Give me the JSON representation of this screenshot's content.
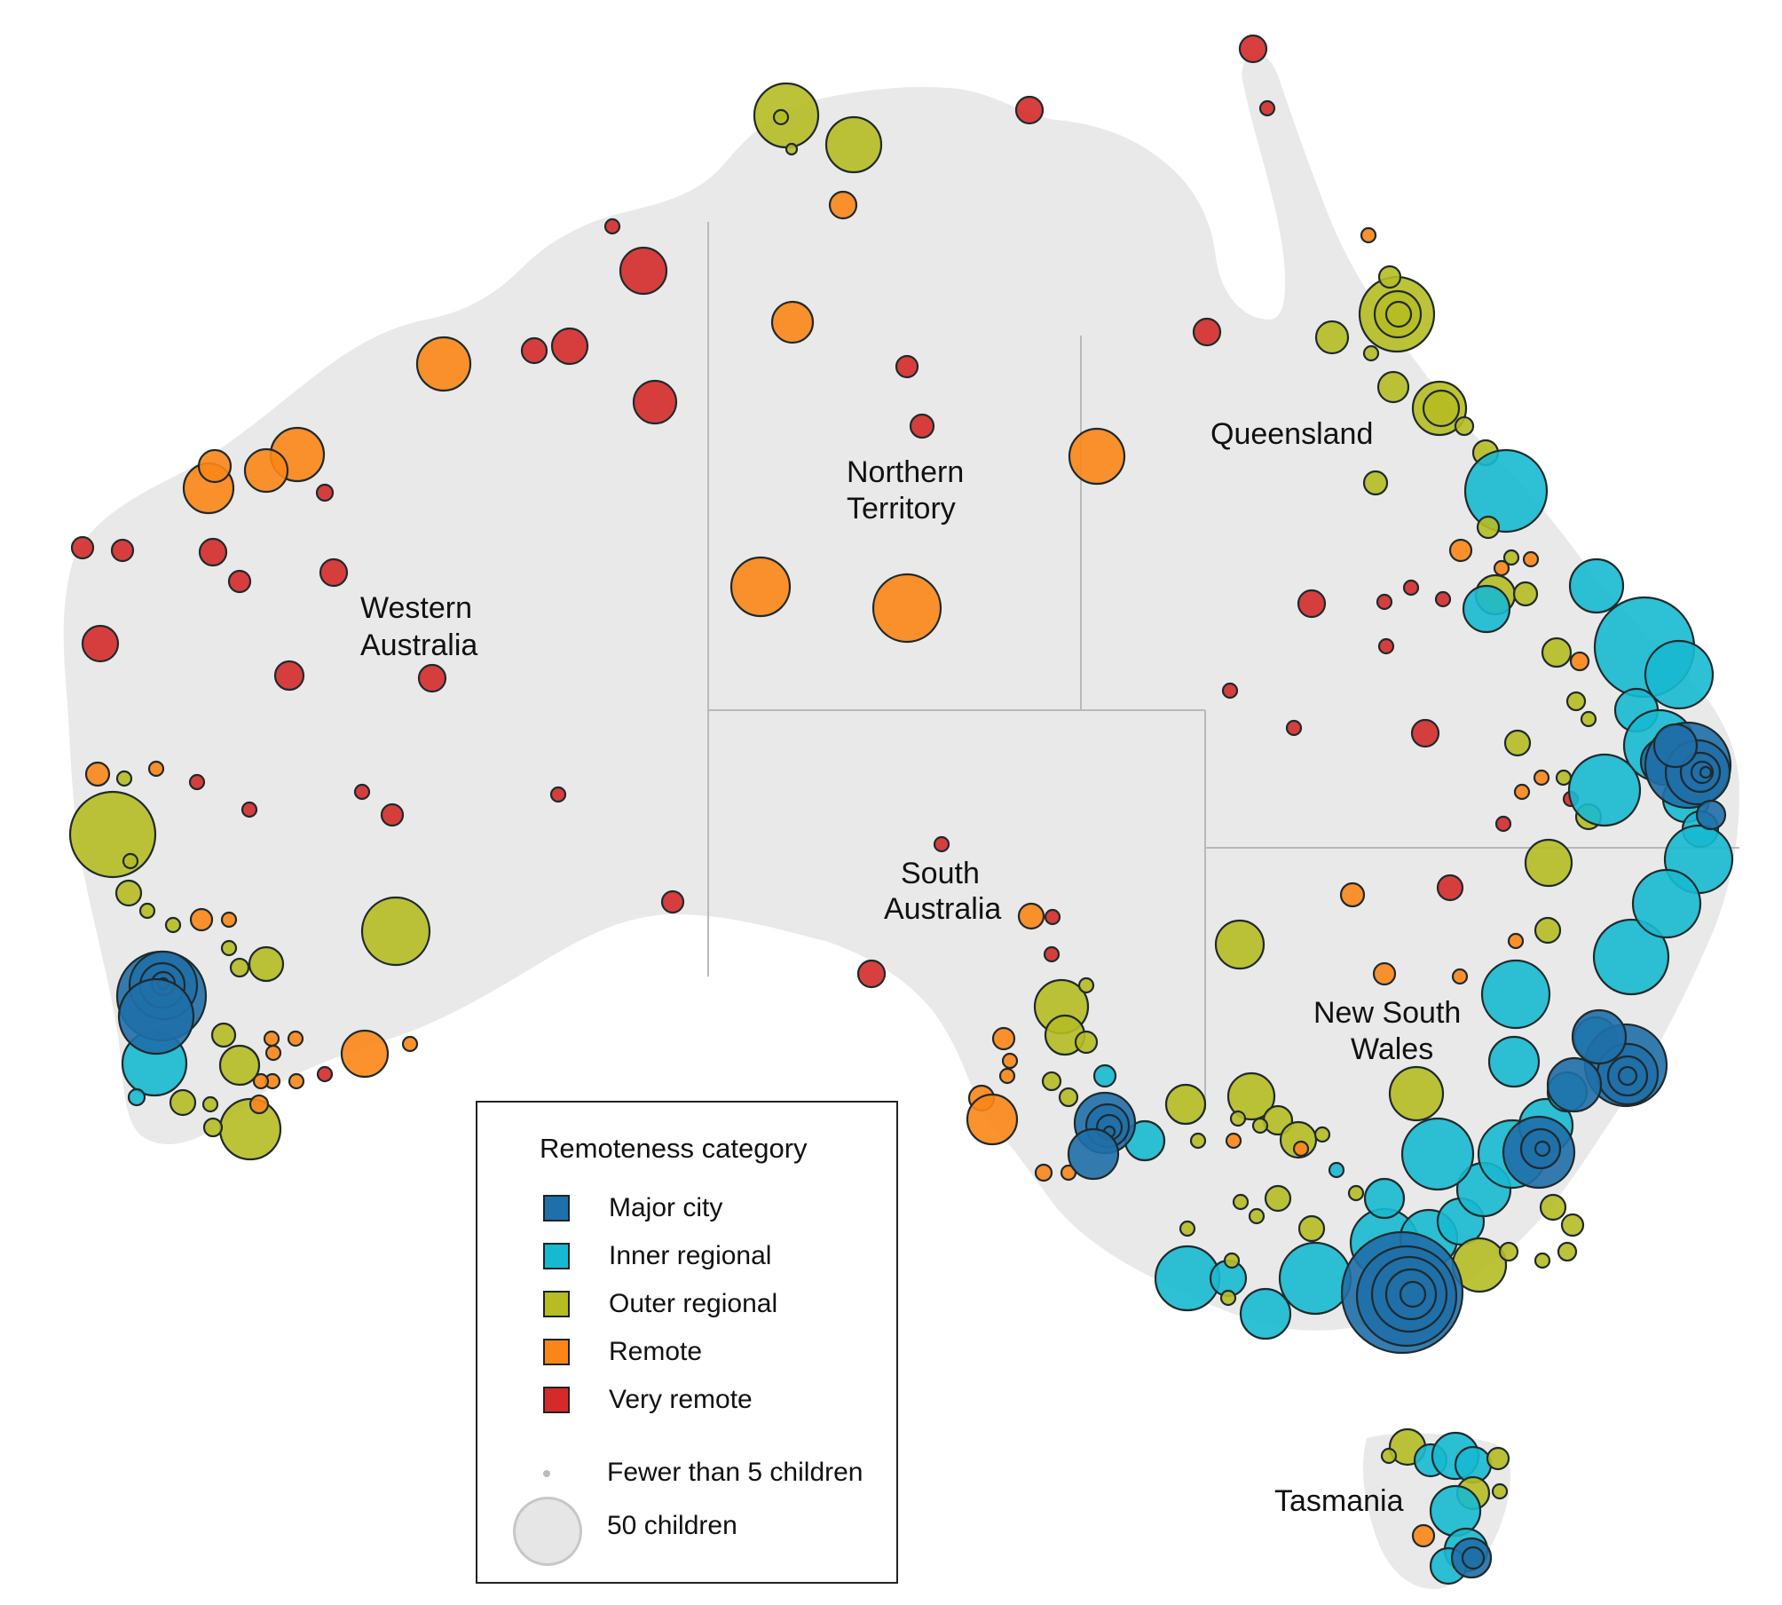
{
  "regions": {
    "western_australia": [
      "Western",
      "Australia"
    ],
    "northern_territory": [
      "Northern",
      "Territory"
    ],
    "queensland": [
      "Queensland"
    ],
    "south_australia": [
      "South",
      "Australia"
    ],
    "new_south_wales": [
      "New South",
      "Wales"
    ],
    "tasmania": [
      "Tasmania"
    ]
  },
  "legend": {
    "title": "Remoteness category",
    "categories": [
      {
        "key": "major_city",
        "label": "Major city",
        "color": "#1f6fa9"
      },
      {
        "key": "inner_regional",
        "label": "Inner regional",
        "color": "#17b9d0"
      },
      {
        "key": "outer_regional",
        "label": "Outer regional",
        "color": "#b6bc22"
      },
      {
        "key": "remote",
        "label": "Remote",
        "color": "#fb8617"
      },
      {
        "key": "very_remote",
        "label": "Very remote",
        "color": "#d42b2a"
      }
    ],
    "size_small_label": "Fewer than 5 children",
    "size_large_label": "50 children"
  }
}
